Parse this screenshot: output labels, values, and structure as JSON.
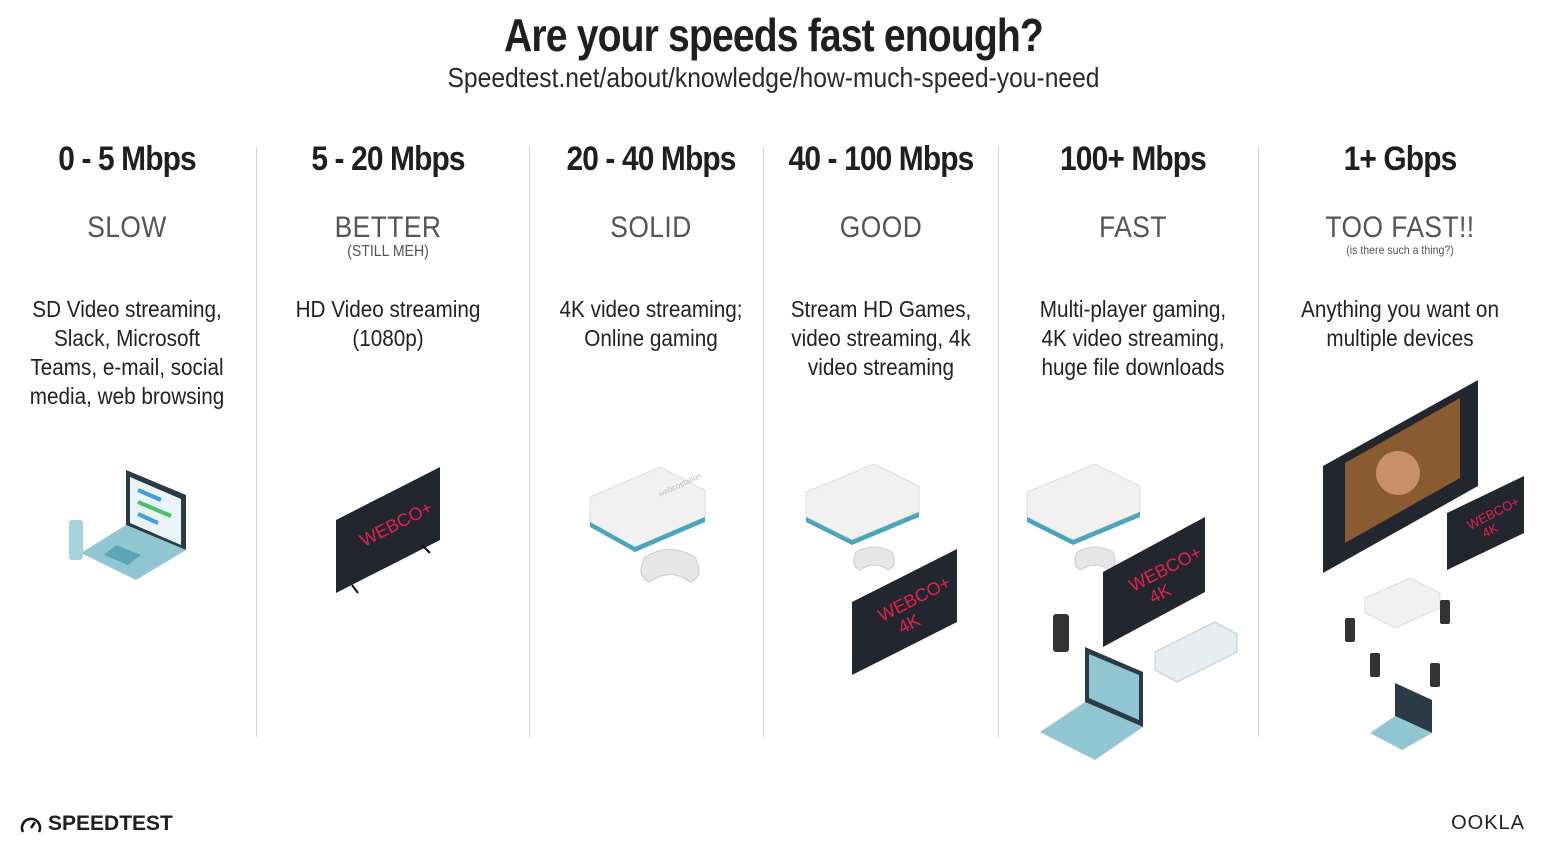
{
  "header": {
    "title": "Are your speeds fast enough?",
    "subtitle": "Speedtest.net/about/knowledge/how-much-speed-you-need"
  },
  "columns": [
    {
      "speed": "0 - 5 Mbps",
      "rating": "SLOW",
      "note": "",
      "desc": "SD Video streaming, Slack, Microsoft Teams, e-mail, social media, web browsing"
    },
    {
      "speed": "5 - 20 Mbps",
      "rating": "BETTER",
      "note": "(STILL MEH)",
      "desc": "HD Video streaming (1080p)"
    },
    {
      "speed": "20 - 40 Mbps",
      "rating": "SOLID",
      "note": "",
      "desc": "4K video streaming; Online gaming"
    },
    {
      "speed": "40 - 100 Mbps",
      "rating": "GOOD",
      "note": "",
      "desc": "Stream HD Games, video streaming, 4k video streaming"
    },
    {
      "speed": "100+ Mbps",
      "rating": "FAST",
      "note": "",
      "desc": "Multi-player gaming, 4K video streaming, huge file downloads"
    },
    {
      "speed": "1+ Gbps",
      "rating": "TOO FAST!!",
      "note": "(is there such a thing?)",
      "desc": "Anything you want on multiple devices"
    }
  ],
  "tv": {
    "brand": "WEBCO+",
    "res": "4K"
  },
  "console_label": "webcostation",
  "footer": {
    "left_logo": "SPEEDTEST",
    "right_logo": "OOKLA"
  },
  "colors": {
    "tv_text": "#e8204f",
    "laptop": "#8fc6d2",
    "divider": "#cfd6d8"
  }
}
